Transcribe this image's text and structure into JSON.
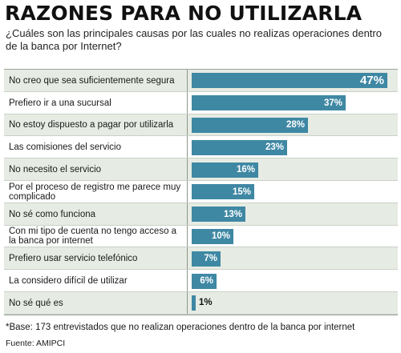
{
  "title": "RAZONES PARA NO UTILIZARLA",
  "subtitle": "¿Cuáles son las principales causas por las cuales no realizas operaciones dentro de la banca por Internet?",
  "footnote": "*Base: 173 entrevistados que no realizan operaciones dentro de la banca por internet",
  "source": "Fuente: AMIPCI",
  "colors": {
    "bar": "#3f88a4",
    "row_highlight": "#e6ece3"
  },
  "chart_data": {
    "type": "bar",
    "orientation": "horizontal",
    "unit": "%",
    "categories": [
      "No creo que sea suficientemente segura",
      "Prefiero ir a una sucursal",
      "No estoy dispuesto a pagar por utilizarla",
      "Las comisiones del servicio",
      "No necesito el servicio",
      "Por el proceso de registro me parece muy complicado",
      "No sé como funciona",
      "Con mi tipo de cuenta no tengo acceso a la banca por internet",
      "Prefiero usar servicio telefónico",
      "La considero difícil de utilizar",
      "No sé qué es"
    ],
    "values": [
      47,
      37,
      28,
      23,
      16,
      15,
      13,
      10,
      7,
      6,
      1
    ],
    "labels": [
      "47%",
      "37%",
      "28%",
      "23%",
      "16%",
      "15%",
      "13%",
      "10%",
      "7%",
      "6%",
      "1%"
    ],
    "xlim": [
      0,
      47
    ]
  }
}
